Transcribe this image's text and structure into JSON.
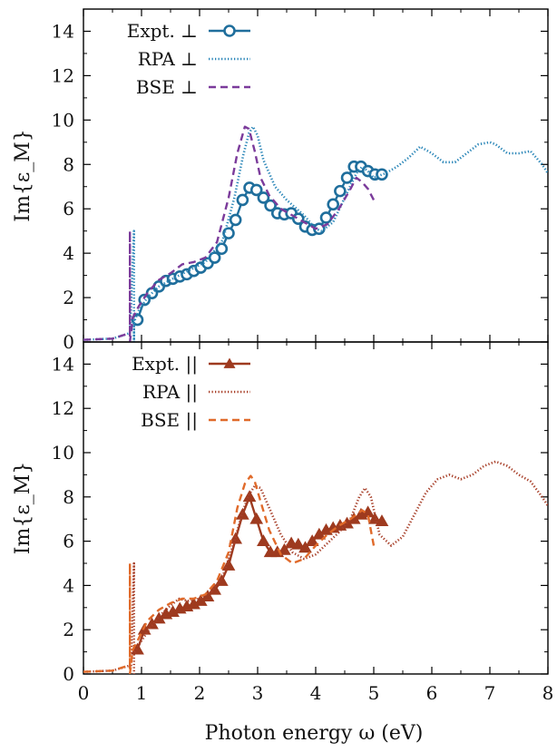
{
  "chart_data": [
    {
      "type": "line",
      "panel": "perpendicular",
      "ylabel": "Im{ε_M}",
      "xlim": [
        0,
        8
      ],
      "ylim": [
        0,
        15
      ],
      "yticks": [
        "0",
        "2",
        "4",
        "6",
        "8",
        "10",
        "12",
        "14"
      ],
      "legend_position": "top-left",
      "series": [
        {
          "name": "Expt. ⊥",
          "color": "#1f6e9c",
          "style": "solid-circles",
          "x": [
            0.93,
            1.05,
            1.18,
            1.3,
            1.42,
            1.54,
            1.66,
            1.78,
            1.9,
            2.02,
            2.14,
            2.26,
            2.38,
            2.5,
            2.62,
            2.74,
            2.86,
            2.98,
            3.1,
            3.22,
            3.34,
            3.46,
            3.58,
            3.7,
            3.82,
            3.94,
            4.06,
            4.18,
            4.3,
            4.42,
            4.54,
            4.66,
            4.78,
            4.9,
            5.02,
            5.14
          ],
          "y": [
            1.0,
            1.9,
            2.2,
            2.5,
            2.75,
            2.85,
            2.95,
            3.05,
            3.2,
            3.35,
            3.55,
            3.8,
            4.2,
            4.9,
            5.5,
            6.4,
            6.95,
            6.85,
            6.5,
            6.15,
            5.8,
            5.75,
            5.8,
            5.55,
            5.2,
            5.05,
            5.1,
            5.6,
            6.2,
            6.8,
            7.4,
            7.9,
            7.9,
            7.7,
            7.55,
            7.55
          ]
        },
        {
          "name": "RPA ⊥",
          "color": "#2a86b8",
          "style": "dotted",
          "x": [
            0,
            0.5,
            0.8,
            0.87,
            0.87,
            0.87,
            0.95,
            1.1,
            1.3,
            1.5,
            1.8,
            2.1,
            2.4,
            2.6,
            2.75,
            2.85,
            2.92,
            3.0,
            3.1,
            3.3,
            3.5,
            3.8,
            4.0,
            4.1,
            4.3,
            4.5,
            4.7,
            4.8,
            4.9,
            5.0,
            5.2,
            5.4,
            5.6,
            5.8,
            6.0,
            6.2,
            6.4,
            6.6,
            6.8,
            7.0,
            7.1,
            7.3,
            7.5,
            7.7,
            7.9,
            8.0
          ],
          "y": [
            0.1,
            0.15,
            0.4,
            5.0,
            0,
            0.9,
            1.4,
            2.0,
            2.5,
            2.8,
            3.2,
            3.6,
            4.6,
            6.5,
            8.4,
            9.4,
            9.7,
            9.3,
            8.2,
            7.0,
            6.4,
            5.7,
            5.1,
            5.0,
            5.4,
            6.5,
            7.6,
            7.9,
            7.7,
            7.4,
            7.6,
            7.9,
            8.3,
            8.8,
            8.5,
            8.1,
            8.1,
            8.5,
            8.9,
            9.0,
            8.9,
            8.5,
            8.5,
            8.6,
            8.0,
            7.6
          ]
        },
        {
          "name": "BSE ⊥",
          "color": "#7b3b9b",
          "style": "dashed",
          "x": [
            0,
            0.5,
            0.8,
            0.8,
            0.8,
            0.85,
            0.95,
            1.1,
            1.3,
            1.5,
            1.7,
            1.9,
            2.1,
            2.3,
            2.5,
            2.65,
            2.78,
            2.85,
            2.95,
            3.05,
            3.2,
            3.4,
            3.6,
            3.8,
            4.0,
            4.2,
            4.4,
            4.6,
            4.7,
            4.8,
            4.9,
            5.0
          ],
          "y": [
            0.1,
            0.15,
            0.4,
            5.0,
            0,
            1.1,
            1.6,
            2.2,
            2.8,
            3.1,
            3.5,
            3.6,
            3.8,
            4.5,
            6.5,
            8.5,
            9.7,
            9.6,
            8.6,
            7.4,
            6.6,
            6.0,
            5.7,
            5.4,
            5.1,
            5.3,
            6.0,
            6.9,
            7.4,
            7.2,
            6.9,
            6.4
          ]
        }
      ]
    },
    {
      "type": "line",
      "panel": "parallel",
      "xlabel": "Photon energy ω (eV)",
      "ylabel": "Im{ε_M}",
      "xlim": [
        0,
        8
      ],
      "ylim": [
        0,
        15
      ],
      "xticks": [
        "0",
        "1",
        "2",
        "3",
        "4",
        "5",
        "6",
        "7",
        "8"
      ],
      "yticks": [
        "0",
        "2",
        "4",
        "6",
        "8",
        "10",
        "12",
        "14"
      ],
      "legend_position": "top-left",
      "series": [
        {
          "name": "Expt. ||",
          "color": "#9e3a1f",
          "style": "solid-triangles",
          "x": [
            0.93,
            1.05,
            1.18,
            1.3,
            1.42,
            1.54,
            1.66,
            1.78,
            1.9,
            2.02,
            2.14,
            2.26,
            2.38,
            2.5,
            2.62,
            2.74,
            2.86,
            2.98,
            3.1,
            3.22,
            3.34,
            3.46,
            3.58,
            3.7,
            3.82,
            3.94,
            4.06,
            4.18,
            4.3,
            4.42,
            4.54,
            4.66,
            4.78,
            4.9,
            5.02,
            5.14
          ],
          "y": [
            1.1,
            2.0,
            2.25,
            2.5,
            2.7,
            2.8,
            2.95,
            3.05,
            3.15,
            3.3,
            3.5,
            3.8,
            4.2,
            4.9,
            6.1,
            7.2,
            8.0,
            7.0,
            6.0,
            5.5,
            5.5,
            5.6,
            5.9,
            5.85,
            5.7,
            6.0,
            6.3,
            6.5,
            6.6,
            6.7,
            6.8,
            7.0,
            7.2,
            7.3,
            7.0,
            6.9
          ]
        },
        {
          "name": "RPA ||",
          "color": "#a8402a",
          "style": "dotted",
          "x": [
            0,
            0.5,
            0.82,
            0.87,
            0.87,
            0.87,
            0.95,
            1.1,
            1.3,
            1.5,
            1.65,
            1.8,
            2.0,
            2.2,
            2.4,
            2.6,
            2.75,
            2.85,
            2.95,
            3.05,
            3.2,
            3.4,
            3.6,
            3.8,
            4.0,
            4.2,
            4.4,
            4.6,
            4.75,
            4.85,
            4.95,
            5.1,
            5.3,
            5.5,
            5.7,
            5.9,
            6.1,
            6.3,
            6.5,
            6.7,
            6.9,
            7.1,
            7.3,
            7.5,
            7.7,
            7.9,
            8.0
          ],
          "y": [
            0.1,
            0.15,
            0.4,
            5.0,
            0,
            0.9,
            1.3,
            1.9,
            2.6,
            3.1,
            3.4,
            3.3,
            3.4,
            3.7,
            4.4,
            6.0,
            7.4,
            8.1,
            8.5,
            8.4,
            7.5,
            6.3,
            5.5,
            5.2,
            5.4,
            5.9,
            6.4,
            7.0,
            8.0,
            8.4,
            8.0,
            6.3,
            5.8,
            6.2,
            7.2,
            8.2,
            8.8,
            9.0,
            8.8,
            9.0,
            9.4,
            9.6,
            9.4,
            9.0,
            8.7,
            8.0,
            7.6
          ]
        },
        {
          "name": "BSE ||",
          "color": "#e06a2a",
          "style": "dashed",
          "x": [
            0,
            0.5,
            0.8,
            0.8,
            0.8,
            0.85,
            0.95,
            1.1,
            1.3,
            1.5,
            1.7,
            1.9,
            2.1,
            2.3,
            2.5,
            2.65,
            2.78,
            2.88,
            2.95,
            3.05,
            3.2,
            3.4,
            3.6,
            3.8,
            4.0,
            4.2,
            4.4,
            4.6,
            4.8,
            4.9,
            5.0
          ],
          "y": [
            0.1,
            0.15,
            0.4,
            5.0,
            0,
            1.1,
            1.6,
            2.4,
            2.9,
            3.2,
            3.4,
            3.4,
            3.6,
            4.2,
            5.5,
            7.5,
            8.6,
            8.95,
            8.7,
            7.8,
            6.5,
            5.4,
            5.0,
            5.2,
            5.8,
            6.3,
            6.7,
            7.0,
            7.4,
            7.2,
            5.8
          ]
        }
      ]
    }
  ]
}
